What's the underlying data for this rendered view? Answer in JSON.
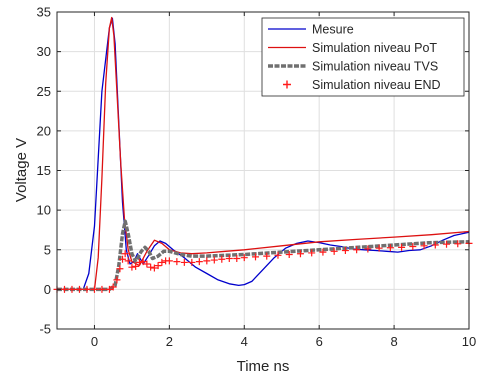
{
  "chart_data": {
    "type": "line",
    "title": "",
    "xlabel": "Time ns",
    "ylabel": "Voltage V",
    "xlim": [
      -1,
      10
    ],
    "ylim": [
      -5,
      35
    ],
    "grid": true,
    "legend_position": "top-right",
    "x_ticks": [
      0,
      2,
      4,
      6,
      8,
      10
    ],
    "y_ticks": [
      -5,
      0,
      5,
      10,
      15,
      20,
      25,
      30,
      35
    ],
    "series": [
      {
        "name": "Mesure",
        "color": "#0000cc",
        "style": "solid",
        "x": [
          -1,
          -0.3,
          -0.15,
          0,
          0.2,
          0.4,
          0.48,
          0.55,
          0.65,
          0.75,
          0.85,
          0.95,
          1.05,
          1.15,
          1.3,
          1.45,
          1.6,
          1.75,
          1.9,
          2.1,
          2.4,
          2.7,
          3.0,
          3.3,
          3.6,
          3.85,
          4.0,
          4.2,
          4.5,
          4.8,
          5.1,
          5.4,
          5.7,
          6.0,
          6.3,
          6.6,
          6.9,
          7.2,
          7.5,
          7.8,
          8.1,
          8.4,
          8.7,
          9.0,
          9.3,
          9.6,
          9.8,
          10
        ],
        "y": [
          0,
          0,
          2,
          8,
          25,
          33,
          34.2,
          31,
          21,
          11,
          5,
          3.2,
          3.5,
          4.5,
          3.2,
          4.3,
          5.5,
          6.1,
          5.8,
          5.0,
          4.0,
          2.8,
          2.0,
          1.2,
          0.7,
          0.5,
          0.6,
          1.0,
          2.5,
          4.0,
          5.2,
          5.8,
          6.1,
          5.9,
          5.6,
          5.4,
          5.1,
          5.0,
          4.9,
          4.8,
          4.7,
          4.9,
          5.0,
          5.5,
          6.2,
          6.8,
          7.0,
          7.2
        ]
      },
      {
        "name": "Simulation niveau PoT",
        "color": "#dd1111",
        "style": "solid",
        "x": [
          -1,
          0,
          0.1,
          0.2,
          0.3,
          0.4,
          0.46,
          0.52,
          0.6,
          0.7,
          0.8,
          0.9,
          1.0,
          1.2,
          1.4,
          1.6,
          1.8,
          2.0,
          2.3,
          2.6,
          3.0,
          3.5,
          4.0,
          5.0,
          6.0,
          7.0,
          8.0,
          9.0,
          10
        ],
        "y": [
          0,
          0,
          4,
          14,
          26,
          33,
          34.3,
          32,
          25,
          16,
          9,
          5,
          3.5,
          3.0,
          4.8,
          6.2,
          5.8,
          5.0,
          4.6,
          4.5,
          4.6,
          4.8,
          5.0,
          5.5,
          6.0,
          6.3,
          6.6,
          6.9,
          7.3
        ]
      },
      {
        "name": "Simulation niveau TVS",
        "color": "#707070",
        "style": "thick",
        "x": [
          -1,
          0.4,
          0.55,
          0.65,
          0.75,
          0.82,
          0.9,
          1.0,
          1.1,
          1.25,
          1.35,
          1.45,
          1.55,
          1.7,
          1.85,
          2.0,
          2.3,
          2.6,
          3.0,
          3.5,
          4.0,
          5.0,
          6.0,
          7.0,
          8.0,
          9.0,
          10
        ],
        "y": [
          0,
          0,
          0.5,
          3,
          7,
          8.6,
          7,
          4.5,
          3.5,
          4.8,
          5.3,
          4.8,
          3.9,
          4.2,
          4.8,
          4.8,
          4.4,
          4.2,
          4.2,
          4.3,
          4.4,
          4.7,
          5.0,
          5.3,
          5.6,
          5.9,
          6.0
        ]
      },
      {
        "name": "Simulation niveau END",
        "color": "#ff1a1a",
        "style": "markers",
        "x": [
          -1,
          -0.8,
          -0.6,
          -0.4,
          -0.2,
          0,
          0.2,
          0.4,
          0.5,
          0.6,
          0.68,
          0.75,
          0.82,
          0.9,
          1.0,
          1.1,
          1.2,
          1.3,
          1.4,
          1.5,
          1.6,
          1.7,
          1.8,
          1.9,
          2.0,
          2.2,
          2.4,
          2.6,
          2.8,
          3.0,
          3.2,
          3.4,
          3.6,
          3.8,
          4.0,
          4.3,
          4.6,
          4.9,
          5.2,
          5.5,
          5.8,
          6.1,
          6.4,
          6.7,
          7.0,
          7.3,
          7.6,
          7.9,
          8.2,
          8.5,
          8.8,
          9.1,
          9.4,
          9.7,
          10
        ],
        "y": [
          0,
          0,
          0,
          0,
          0,
          0,
          0,
          0,
          0.3,
          1.2,
          2.6,
          3.8,
          4.5,
          3.6,
          2.8,
          2.9,
          3.4,
          3.5,
          3.2,
          2.8,
          2.7,
          3.0,
          3.4,
          3.6,
          3.6,
          3.5,
          3.4,
          3.4,
          3.5,
          3.6,
          3.7,
          3.8,
          3.9,
          3.9,
          4.0,
          4.1,
          4.2,
          4.3,
          4.4,
          4.5,
          4.6,
          4.7,
          4.8,
          4.9,
          5.0,
          5.1,
          5.2,
          5.25,
          5.3,
          5.4,
          5.5,
          5.6,
          5.7,
          5.75,
          5.8
        ]
      }
    ]
  }
}
